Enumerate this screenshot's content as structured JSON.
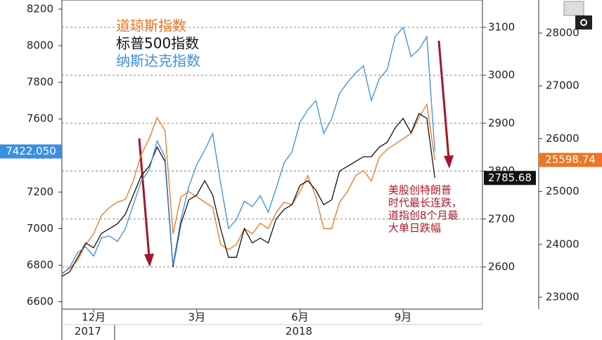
{
  "chart_data": {
    "type": "line",
    "categories": [
      null,
      null,
      null,
      null,
      "12月",
      null,
      null,
      null,
      null,
      null,
      null,
      null,
      null,
      null,
      null,
      null,
      null,
      "3月",
      null,
      null,
      null,
      null,
      null,
      null,
      null,
      null,
      null,
      null,
      null,
      null,
      "6月",
      null,
      null,
      null,
      null,
      null,
      null,
      null,
      null,
      null,
      null,
      null,
      null,
      "9月",
      null,
      null,
      null,
      null,
      null,
      null,
      null,
      null,
      null,
      null
    ],
    "years": [
      "2017",
      "2018"
    ],
    "series": [
      {
        "name": "道琼斯指数",
        "color": "#ee7522",
        "axis": "y3",
        "values": [
          23450,
          23550,
          23700,
          24000,
          24200,
          24550,
          24700,
          24800,
          24850,
          25200,
          25700,
          26000,
          26400,
          26150,
          24200,
          24900,
          25000,
          24900,
          24800,
          24700,
          24000,
          23900,
          24000,
          24300,
          24200,
          24400,
          24300,
          24600,
          24800,
          24750,
          25000,
          25300,
          24900,
          24300,
          24300,
          24800,
          25000,
          25300,
          25400,
          25200,
          25650,
          25800,
          25900,
          26000,
          26100,
          26400,
          26650,
          25598.74,
          null,
          null,
          null,
          null,
          null,
          null
        ]
      },
      {
        "name": "标普500指数",
        "color": "#111111",
        "axis": "y2",
        "values": [
          2580,
          2590,
          2620,
          2650,
          2640,
          2670,
          2680,
          2690,
          2710,
          2750,
          2790,
          2810,
          2850,
          2820,
          2600,
          2690,
          2740,
          2750,
          2780,
          2750,
          2680,
          2620,
          2620,
          2680,
          2650,
          2660,
          2650,
          2700,
          2720,
          2730,
          2770,
          2780,
          2760,
          2730,
          2740,
          2800,
          2810,
          2820,
          2830,
          2830,
          2850,
          2860,
          2890,
          2910,
          2880,
          2920,
          2910,
          2785.68,
          null,
          null,
          null,
          null,
          null,
          null
        ]
      },
      {
        "name": "纳斯达克指数",
        "color": "#3a8fe0",
        "axis": "y",
        "values": [
          6750,
          6790,
          6870,
          6900,
          6850,
          6950,
          6960,
          6930,
          7000,
          7130,
          7260,
          7320,
          7480,
          7390,
          6800,
          7050,
          7230,
          7350,
          7430,
          7520,
          7250,
          7000,
          7050,
          7150,
          7120,
          7180,
          7090,
          7220,
          7360,
          7420,
          7580,
          7650,
          7700,
          7520,
          7600,
          7740,
          7800,
          7850,
          7890,
          7700,
          7820,
          7870,
          8050,
          8100,
          7940,
          7980,
          8050,
          7422.05,
          null,
          null,
          null,
          null,
          null,
          null
        ],
        "value_labels": [
          null,
          null,
          null,
          null,
          null,
          null,
          null,
          null,
          null,
          null,
          null,
          null,
          null,
          null,
          null,
          null,
          null,
          null,
          null,
          null,
          null,
          null,
          null,
          null,
          null,
          null,
          null,
          null,
          null,
          null,
          null,
          null,
          null,
          null,
          null,
          null,
          null,
          null,
          null,
          null,
          null,
          null,
          null,
          null,
          null,
          null,
          null,
          "7422.050",
          null,
          null,
          null,
          null,
          null,
          null
        ]
      }
    ],
    "ylim": [
      6560,
      8250
    ],
    "yticks": [
      6600,
      6800,
      7000,
      7200,
      7400,
      7600,
      7800,
      8000,
      8200
    ],
    "y2lim": [
      2512,
      3157
    ],
    "y2ticks": [
      2600,
      2700,
      2800,
      2900,
      3000,
      3100
    ],
    "y3lim": [
      22775,
      28625
    ],
    "y3ticks": [
      23000,
      24000,
      25000,
      26000,
      27000,
      28000
    ],
    "grid": true,
    "annotation": [
      "美股创特朗普",
      "时代最长连跌，",
      "道指创8个月最",
      "大单日跌幅"
    ]
  }
}
